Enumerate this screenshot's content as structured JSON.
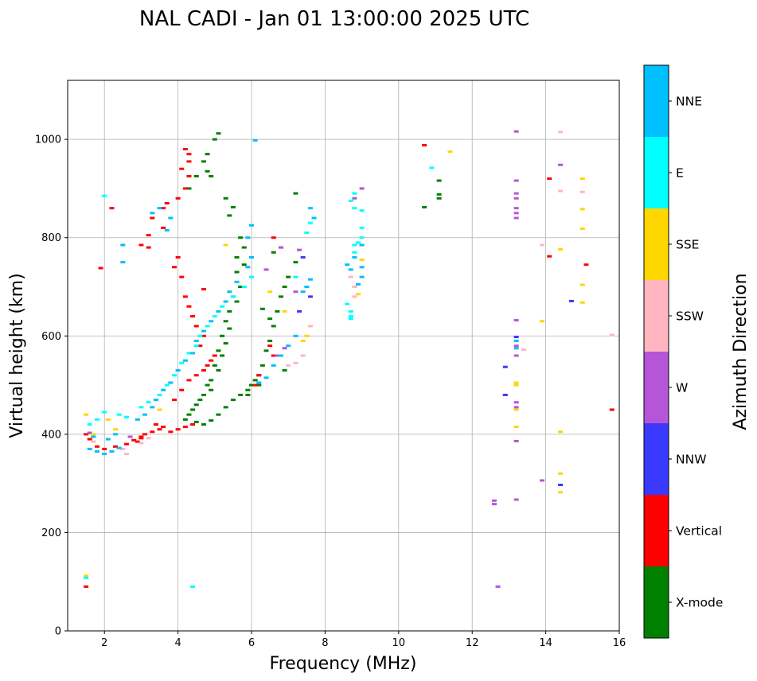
{
  "chart_data": {
    "type": "scatter",
    "title": "NAL CADI - Jan 01 13:00:00 2025 UTC",
    "xlabel": "Frequency (MHz)",
    "ylabel": "Virtual height (km)",
    "xlim": [
      1,
      16
    ],
    "ylim": [
      0,
      1120
    ],
    "xticks": [
      2,
      4,
      6,
      8,
      10,
      12,
      14,
      16
    ],
    "yticks": [
      0,
      200,
      400,
      600,
      800,
      1000
    ],
    "grid": true,
    "colorbar": {
      "title": "Azimuth Direction",
      "categories": [
        {
          "name": "X-mode",
          "color": "#008000"
        },
        {
          "name": "Vertical",
          "color": "#ff0000"
        },
        {
          "name": "NNW",
          "color": "#3a3aff"
        },
        {
          "name": "W",
          "color": "#b556d8"
        },
        {
          "name": "SSW",
          "color": "#ffb6c1"
        },
        {
          "name": "SSE",
          "color": "#ffd700"
        },
        {
          "name": "E",
          "color": "#00ffff"
        },
        {
          "name": "NNE",
          "color": "#00bfff"
        }
      ]
    },
    "series": [
      {
        "name": "X-mode",
        "points": [
          [
            5.1,
            1012
          ],
          [
            5.0,
            1000
          ],
          [
            4.8,
            970
          ],
          [
            4.7,
            955
          ],
          [
            4.8,
            935
          ],
          [
            4.9,
            925
          ],
          [
            4.5,
            925
          ],
          [
            4.3,
            900
          ],
          [
            5.3,
            880
          ],
          [
            5.5,
            862
          ],
          [
            5.4,
            845
          ],
          [
            5.7,
            800
          ],
          [
            5.8,
            780
          ],
          [
            5.6,
            760
          ],
          [
            5.8,
            745
          ],
          [
            5.6,
            730
          ],
          [
            5.7,
            700
          ],
          [
            5.5,
            680
          ],
          [
            5.6,
            670
          ],
          [
            5.4,
            650
          ],
          [
            5.3,
            630
          ],
          [
            5.4,
            615
          ],
          [
            5.2,
            600
          ],
          [
            5.3,
            585
          ],
          [
            5.1,
            570
          ],
          [
            5.2,
            560
          ],
          [
            5.0,
            540
          ],
          [
            5.1,
            530
          ],
          [
            4.9,
            510
          ],
          [
            4.8,
            500
          ],
          [
            4.9,
            490
          ],
          [
            4.7,
            480
          ],
          [
            4.6,
            470
          ],
          [
            4.5,
            460
          ],
          [
            4.4,
            450
          ],
          [
            4.3,
            440
          ],
          [
            4.2,
            430
          ],
          [
            4.5,
            425
          ],
          [
            4.7,
            420
          ],
          [
            4.9,
            428
          ],
          [
            5.1,
            440
          ],
          [
            5.3,
            455
          ],
          [
            5.5,
            470
          ],
          [
            5.7,
            480
          ],
          [
            5.9,
            490
          ],
          [
            6.0,
            500
          ],
          [
            6.2,
            520
          ],
          [
            6.3,
            540
          ],
          [
            6.4,
            570
          ],
          [
            6.5,
            590
          ],
          [
            6.6,
            620
          ],
          [
            6.7,
            650
          ],
          [
            6.8,
            680
          ],
          [
            6.9,
            700
          ],
          [
            7.0,
            720
          ],
          [
            7.2,
            750
          ],
          [
            6.6,
            770
          ],
          [
            6.3,
            655
          ],
          [
            6.5,
            635
          ],
          [
            6.7,
            560
          ],
          [
            6.9,
            530
          ],
          [
            6.1,
            510
          ],
          [
            6.2,
            500
          ],
          [
            5.9,
            480
          ],
          [
            7.2,
            890
          ],
          [
            10.7,
            862
          ],
          [
            11.1,
            880
          ],
          [
            11.1,
            888
          ],
          [
            11.1,
            916
          ]
        ]
      },
      {
        "name": "Vertical",
        "points": [
          [
            1.5,
            90
          ],
          [
            1.5,
            400
          ],
          [
            1.6,
            390
          ],
          [
            1.8,
            375
          ],
          [
            2.0,
            370
          ],
          [
            2.3,
            375
          ],
          [
            2.6,
            380
          ],
          [
            2.8,
            388
          ],
          [
            3.0,
            392
          ],
          [
            3.1,
            400
          ],
          [
            3.3,
            405
          ],
          [
            3.5,
            410
          ],
          [
            3.6,
            415
          ],
          [
            3.8,
            405
          ],
          [
            4.0,
            410
          ],
          [
            4.2,
            415
          ],
          [
            4.4,
            420
          ],
          [
            3.9,
            470
          ],
          [
            4.1,
            490
          ],
          [
            4.3,
            510
          ],
          [
            4.5,
            520
          ],
          [
            4.7,
            530
          ],
          [
            4.8,
            540
          ],
          [
            4.9,
            550
          ],
          [
            5.0,
            560
          ],
          [
            4.6,
            580
          ],
          [
            4.7,
            600
          ],
          [
            4.5,
            620
          ],
          [
            4.4,
            640
          ],
          [
            4.3,
            660
          ],
          [
            4.2,
            680
          ],
          [
            4.7,
            695
          ],
          [
            4.1,
            720
          ],
          [
            3.9,
            740
          ],
          [
            4.0,
            760
          ],
          [
            3.6,
            820
          ],
          [
            3.2,
            780
          ],
          [
            3.0,
            785
          ],
          [
            3.2,
            805
          ],
          [
            3.3,
            840
          ],
          [
            3.6,
            860
          ],
          [
            3.7,
            870
          ],
          [
            4.0,
            880
          ],
          [
            4.2,
            900
          ],
          [
            4.3,
            925
          ],
          [
            4.1,
            940
          ],
          [
            4.3,
            955
          ],
          [
            4.3,
            970
          ],
          [
            4.2,
            980
          ],
          [
            1.9,
            738
          ],
          [
            2.2,
            860
          ],
          [
            6.6,
            800
          ],
          [
            6.8,
            780
          ],
          [
            6.5,
            580
          ],
          [
            6.6,
            560
          ],
          [
            6.2,
            520
          ],
          [
            6.1,
            500
          ],
          [
            10.7,
            988
          ],
          [
            14.1,
            920
          ],
          [
            14.1,
            762
          ],
          [
            15.1,
            745
          ],
          [
            15.8,
            450
          ],
          [
            3.0,
            395
          ],
          [
            2.9,
            385
          ],
          [
            3.4,
            420
          ]
        ]
      },
      {
        "name": "NNW",
        "points": [
          [
            12.9,
            537
          ],
          [
            12.9,
            480
          ],
          [
            14.4,
            297
          ],
          [
            14.7,
            671
          ],
          [
            13.2,
            598
          ],
          [
            7.4,
            760
          ],
          [
            7.6,
            680
          ],
          [
            7.3,
            650
          ]
        ]
      },
      {
        "name": "W",
        "points": [
          [
            12.6,
            265
          ],
          [
            12.6,
            258
          ],
          [
            12.7,
            90
          ],
          [
            13.2,
            267
          ],
          [
            13.2,
            386
          ],
          [
            13.2,
            465
          ],
          [
            13.2,
            455
          ],
          [
            13.2,
            560
          ],
          [
            13.2,
            580
          ],
          [
            13.2,
            632
          ],
          [
            13.2,
            840
          ],
          [
            13.2,
            850
          ],
          [
            13.2,
            860
          ],
          [
            13.2,
            880
          ],
          [
            13.2,
            890
          ],
          [
            13.2,
            916
          ],
          [
            13.2,
            1016
          ],
          [
            13.9,
            306
          ],
          [
            14.4,
            948
          ],
          [
            9.0,
            900
          ],
          [
            8.8,
            880
          ],
          [
            6.8,
            780
          ],
          [
            6.4,
            735
          ],
          [
            6.7,
            560
          ],
          [
            6.9,
            575
          ],
          [
            7.2,
            690
          ],
          [
            7.3,
            775
          ],
          [
            1.6,
            403
          ],
          [
            2.7,
            395
          ]
        ]
      },
      {
        "name": "SSW",
        "points": [
          [
            14.4,
            1015
          ],
          [
            13.4,
            572
          ],
          [
            13.9,
            785
          ],
          [
            15.8,
            602
          ],
          [
            7.6,
            620
          ],
          [
            7.4,
            560
          ],
          [
            7.2,
            545
          ],
          [
            7.0,
            540
          ],
          [
            8.7,
            720
          ],
          [
            8.8,
            700
          ],
          [
            8.8,
            680
          ],
          [
            1.7,
            385
          ],
          [
            2.5,
            370
          ],
          [
            2.6,
            360
          ],
          [
            3.2,
            392
          ],
          [
            3.0,
            382
          ],
          [
            14.4,
            895
          ],
          [
            15.0,
            893
          ]
        ]
      },
      {
        "name": "SSE",
        "points": [
          [
            13.2,
            415
          ],
          [
            13.2,
            450
          ],
          [
            13.2,
            500
          ],
          [
            13.2,
            505
          ],
          [
            13.2,
            575
          ],
          [
            13.9,
            630
          ],
          [
            14.4,
            405
          ],
          [
            14.4,
            320
          ],
          [
            14.4,
            282
          ],
          [
            14.4,
            776
          ],
          [
            15.0,
            920
          ],
          [
            15.0,
            858
          ],
          [
            15.0,
            818
          ],
          [
            15.0,
            704
          ],
          [
            15.0,
            668
          ],
          [
            11.4,
            975
          ],
          [
            9.0,
            755
          ],
          [
            8.9,
            685
          ],
          [
            5.3,
            785
          ],
          [
            3.5,
            450
          ],
          [
            2.1,
            430
          ],
          [
            1.5,
            440
          ],
          [
            1.5,
            112
          ],
          [
            1.7,
            400
          ],
          [
            2.3,
            410
          ],
          [
            7.4,
            590
          ],
          [
            7.5,
            600
          ],
          [
            6.9,
            650
          ],
          [
            6.5,
            690
          ]
        ]
      },
      {
        "name": "E",
        "points": [
          [
            1.5,
            108
          ],
          [
            4.4,
            90
          ],
          [
            1.6,
            420
          ],
          [
            1.8,
            430
          ],
          [
            2.0,
            445
          ],
          [
            2.4,
            440
          ],
          [
            2.6,
            435
          ],
          [
            3.0,
            455
          ],
          [
            3.2,
            465
          ],
          [
            3.5,
            480
          ],
          [
            3.7,
            500
          ],
          [
            3.9,
            520
          ],
          [
            4.1,
            545
          ],
          [
            4.3,
            565
          ],
          [
            4.5,
            580
          ],
          [
            4.6,
            600
          ],
          [
            4.8,
            620
          ],
          [
            5.0,
            640
          ],
          [
            5.2,
            660
          ],
          [
            5.5,
            680
          ],
          [
            5.8,
            700
          ],
          [
            6.0,
            720
          ],
          [
            8.6,
            665
          ],
          [
            8.7,
            640
          ],
          [
            8.7,
            635
          ],
          [
            8.7,
            650
          ],
          [
            8.8,
            770
          ],
          [
            8.8,
            785
          ],
          [
            8.9,
            790
          ],
          [
            9.0,
            800
          ],
          [
            9.0,
            820
          ],
          [
            8.7,
            875
          ],
          [
            8.8,
            860
          ],
          [
            9.0,
            855
          ],
          [
            8.8,
            890
          ],
          [
            10.9,
            942
          ],
          [
            7.6,
            830
          ],
          [
            7.5,
            810
          ],
          [
            7.2,
            720
          ],
          [
            2.0,
            885
          ]
        ]
      },
      {
        "name": "NNE",
        "points": [
          [
            1.6,
            370
          ],
          [
            1.8,
            365
          ],
          [
            2.0,
            360
          ],
          [
            2.2,
            365
          ],
          [
            2.4,
            372
          ],
          [
            2.1,
            390
          ],
          [
            2.3,
            400
          ],
          [
            1.7,
            395
          ],
          [
            2.9,
            430
          ],
          [
            3.1,
            440
          ],
          [
            3.3,
            455
          ],
          [
            3.4,
            470
          ],
          [
            3.6,
            490
          ],
          [
            3.8,
            505
          ],
          [
            4.0,
            530
          ],
          [
            4.2,
            550
          ],
          [
            4.4,
            565
          ],
          [
            4.5,
            590
          ],
          [
            4.7,
            610
          ],
          [
            4.9,
            630
          ],
          [
            5.1,
            650
          ],
          [
            5.3,
            670
          ],
          [
            5.4,
            690
          ],
          [
            5.6,
            710
          ],
          [
            5.9,
            740
          ],
          [
            6.0,
            760
          ],
          [
            5.9,
            800
          ],
          [
            6.0,
            825
          ],
          [
            6.1,
            998
          ],
          [
            3.3,
            850
          ],
          [
            3.5,
            860
          ],
          [
            3.7,
            815
          ],
          [
            3.8,
            840
          ],
          [
            2.5,
            785
          ],
          [
            2.5,
            750
          ],
          [
            6.6,
            540
          ],
          [
            6.8,
            560
          ],
          [
            7.0,
            580
          ],
          [
            7.2,
            600
          ],
          [
            6.4,
            515
          ],
          [
            6.2,
            505
          ],
          [
            7.5,
            700
          ],
          [
            7.6,
            715
          ],
          [
            7.4,
            690
          ],
          [
            8.8,
            760
          ],
          [
            9.0,
            740
          ],
          [
            9.0,
            720
          ],
          [
            8.9,
            705
          ],
          [
            8.7,
            735
          ],
          [
            8.6,
            745
          ],
          [
            9.0,
            785
          ],
          [
            13.2,
            590
          ],
          [
            13.2,
            575
          ],
          [
            7.7,
            840
          ],
          [
            7.6,
            860
          ]
        ]
      }
    ]
  }
}
